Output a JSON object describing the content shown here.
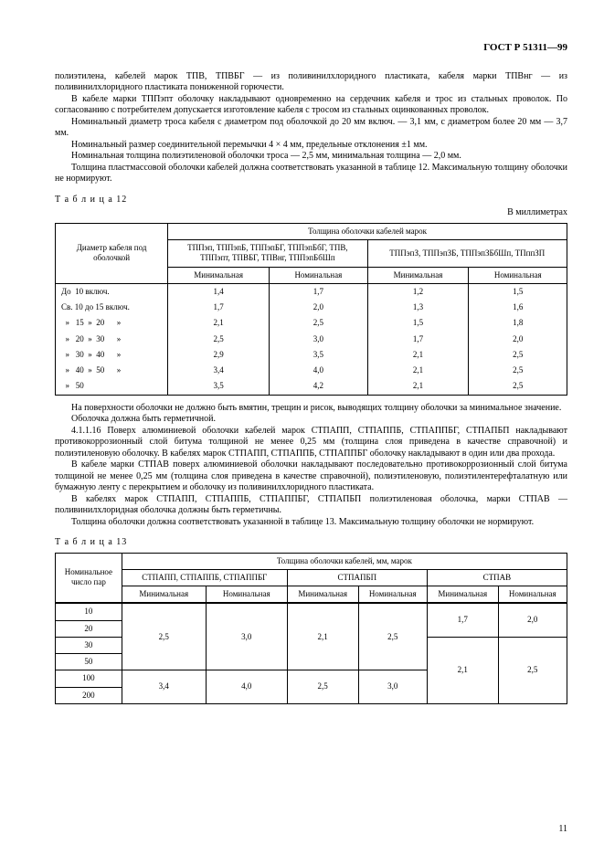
{
  "doc_id": "ГОСТ Р 51311—99",
  "para1": "полиэтилена, кабелей марок ТПВ, ТПВБГ — из поливинилхлоридного пластиката, кабеля марки ТПВнг — из поливинилхлоридного пластиката пониженной горючести.",
  "para2": "В кабеле марки ТППэпт оболочку накладывают одновременно на сердечник кабеля и трос из стальных проволок. По согласованию с потребителем допускается изготовление кабеля с тросом из стальных оцинкованных проволок.",
  "para3": "Номинальный диаметр троса кабеля с диаметром под оболочкой до 20 мм включ. — 3,1 мм, с диаметром более 20 мм — 3,7 мм.",
  "para4": "Номинальный размер соединительной перемычки 4 × 4 мм, предельные отклонения ±1 мм.",
  "para5": "Номинальная толщина полиэтиленовой оболочки троса — 2,5 мм, минимальная толщина — 2,0 мм.",
  "para6": "Толщина пластмассовой оболочки кабелей должна соответствовать указанной в таблице 12. Максимальную толщину оболочки не нормируют.",
  "table12": {
    "label": "Т а б л и ц а  12",
    "unit": "В миллиметрах",
    "head_diam": "Диаметр кабеля под оболочкой",
    "head_group": "Толщина оболочки кабелей марок",
    "head_g1": "ТППэп, ТППэпБ, ТППэпБГ, ТППэпБбГ, ТПВ, ТППэпт, ТПВБГ, ТПВнг, ТППэпБбШп",
    "head_g2": "ТППэпЗ, ТППэпЗБ, ТППэпЗБбШп, ТПппЗП",
    "min": "Минимальная",
    "nom": "Номинальная",
    "rows": [
      {
        "d": "До  10 включ.",
        "a": "1,4",
        "b": "1,7",
        "c": "1,2",
        "e": "1,5"
      },
      {
        "d": "Св. 10 до 15 включ.",
        "a": "1,7",
        "b": "2,0",
        "c": "1,3",
        "e": "1,6"
      },
      {
        "d": "  »   15  »  20      »",
        "a": "2,1",
        "b": "2,5",
        "c": "1,5",
        "e": "1,8"
      },
      {
        "d": "  »   20  »  30      »",
        "a": "2,5",
        "b": "3,0",
        "c": "1,7",
        "e": "2,0"
      },
      {
        "d": "  »   30  »  40      »",
        "a": "2,9",
        "b": "3,5",
        "c": "2,1",
        "e": "2,5"
      },
      {
        "d": "  »   40  »  50      »",
        "a": "3,4",
        "b": "4,0",
        "c": "2,1",
        "e": "2,5"
      },
      {
        "d": "  »   50",
        "a": "3,5",
        "b": "4,2",
        "c": "2,1",
        "e": "2,5"
      }
    ]
  },
  "para7": "На поверхности оболочки не должно быть вмятин, трещин и рисок, выводящих толщину оболочки за минимальное значение.",
  "para8": "Оболочка должна быть герметичной.",
  "para9": "4.1.1.16 Поверх алюминиевой оболочки кабелей марок СТПАПП, СТПАППБ, СТПАППБГ, СТПАПБП накладывают противокоррозионный слой битума толщиной не менее 0,25 мм (толщина слоя приведена в качестве справочной) и полиэтиленовую оболочку. В кабелях марок СТПАПП, СТПАППБ, СТПАППБГ оболочку накладывают в один или два прохода.",
  "para10": "В кабеле марки СТПАВ поверх алюминиевой оболочки накладывают последовательно противокоррозионный слой битума толщиной не менее 0,25 мм (толщина слоя приведена в качестве справочной), полиэтиленовую, полиэтилентерефталатную или бумажную ленту с перекрытием и оболочку из поливинилхлоридного пластиката.",
  "para11": "В кабелях марок СТПАПП, СТПАППБ, СТПАППБГ, СТПАПБП полиэтиленовая оболочка, марки СТПАВ — поливинилхлоридная оболочка должны быть герметичны.",
  "para12": "Толщина оболочки должна соответствовать указанной в таблице 13. Максимальную толщину оболочки не нормируют.",
  "table13": {
    "label": "Т а б л и ц а  13",
    "head_pairs": "Номинальное число пар",
    "head_group": "Толщина оболочки кабелей, мм, марок",
    "g1": "СТПАПП, СТПАППБ, СТПАППБГ",
    "g2": "СТПАПБП",
    "g3": "СТПАВ",
    "min": "Минимальная",
    "nom": "Номинальная",
    "pairs": [
      "10",
      "20",
      "30",
      "50",
      "100",
      "200"
    ],
    "g1a_top": "2,5",
    "g1b_top": "3,0",
    "g1a_bot": "3,4",
    "g1b_bot": "4,0",
    "g2a_top": "2,1",
    "g2b_top": "2,5",
    "g2a_bot": "2,5",
    "g2b_bot": "3,0",
    "g3a_top": "1,7",
    "g3b_top": "2,0",
    "g3a_bot": "2,1",
    "g3b_bot": "2,5"
  },
  "page_num": "11"
}
